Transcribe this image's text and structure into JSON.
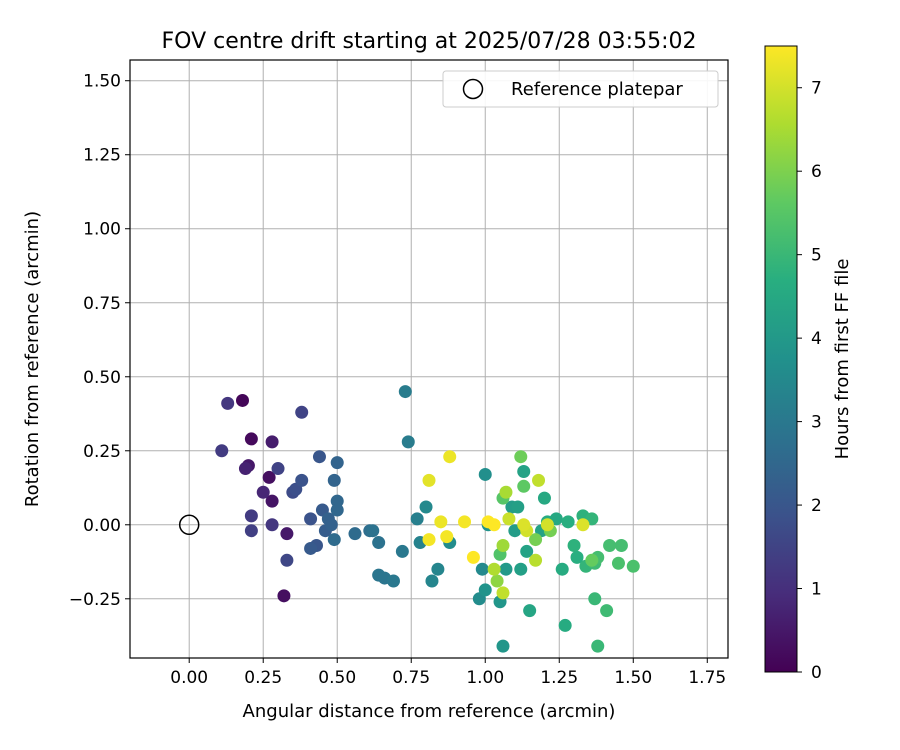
{
  "chart_data": {
    "type": "scatter",
    "title": "FOV centre drift starting at 2025/07/28 03:55:02",
    "xlabel": "Angular distance from reference (arcmin)",
    "ylabel": "Rotation from reference (arcmin)",
    "xlim": [
      -0.2,
      1.82
    ],
    "ylim": [
      -0.45,
      1.57
    ],
    "x_ticks": [
      "0.00",
      "0.25",
      "0.50",
      "0.75",
      "1.00",
      "1.25",
      "1.50",
      "1.75"
    ],
    "y_ticks": [
      "−0.25",
      "0.00",
      "0.25",
      "0.50",
      "0.75",
      "1.00",
      "1.25",
      "1.50"
    ],
    "grid": true,
    "legend": {
      "placement": "top-right",
      "entries": [
        "Reference platepar"
      ]
    },
    "reference_point": {
      "x": 0.0,
      "y": 0.0,
      "label": "Reference platepar"
    },
    "colorbar": {
      "label": "Hours from first FF file",
      "colormap": "viridis",
      "range": [
        0,
        7.5
      ],
      "ticks": [
        "0",
        "1",
        "2",
        "3",
        "4",
        "5",
        "6",
        "7"
      ]
    },
    "points": [
      {
        "x": 0.18,
        "y": 0.42,
        "h": 0.1
      },
      {
        "x": 0.21,
        "y": 0.29,
        "h": 0.2
      },
      {
        "x": 0.27,
        "y": 0.16,
        "h": 0.3
      },
      {
        "x": 0.28,
        "y": 0.08,
        "h": 0.4
      },
      {
        "x": 0.32,
        "y": -0.24,
        "h": 0.3
      },
      {
        "x": 0.2,
        "y": 0.2,
        "h": 0.5
      },
      {
        "x": 0.33,
        "y": -0.03,
        "h": 0.5
      },
      {
        "x": 0.28,
        "y": 0.28,
        "h": 0.6
      },
      {
        "x": 0.19,
        "y": 0.19,
        "h": 0.7
      },
      {
        "x": 0.25,
        "y": 0.11,
        "h": 0.8
      },
      {
        "x": 0.13,
        "y": 0.41,
        "h": 1.2
      },
      {
        "x": 0.11,
        "y": 0.25,
        "h": 1.3
      },
      {
        "x": 0.28,
        "y": 0.0,
        "h": 1.2
      },
      {
        "x": 0.21,
        "y": 0.03,
        "h": 1.3
      },
      {
        "x": 0.21,
        "y": -0.02,
        "h": 1.4
      },
      {
        "x": 0.3,
        "y": 0.19,
        "h": 1.5
      },
      {
        "x": 0.33,
        "y": -0.12,
        "h": 1.6
      },
      {
        "x": 0.38,
        "y": 0.38,
        "h": 1.5
      },
      {
        "x": 0.35,
        "y": 0.11,
        "h": 1.7
      },
      {
        "x": 0.36,
        "y": 0.12,
        "h": 1.8
      },
      {
        "x": 0.38,
        "y": 0.15,
        "h": 1.9
      },
      {
        "x": 0.41,
        "y": 0.02,
        "h": 1.9
      },
      {
        "x": 0.43,
        "y": -0.07,
        "h": 2.0
      },
      {
        "x": 0.41,
        "y": -0.08,
        "h": 2.1
      },
      {
        "x": 0.44,
        "y": 0.23,
        "h": 2.0
      },
      {
        "x": 0.45,
        "y": 0.05,
        "h": 2.1
      },
      {
        "x": 0.46,
        "y": -0.02,
        "h": 2.2
      },
      {
        "x": 0.47,
        "y": 0.02,
        "h": 2.3
      },
      {
        "x": 0.48,
        "y": 0.0,
        "h": 2.3
      },
      {
        "x": 0.49,
        "y": 0.15,
        "h": 2.4
      },
      {
        "x": 0.5,
        "y": 0.21,
        "h": 2.4
      },
      {
        "x": 0.5,
        "y": 0.08,
        "h": 2.5
      },
      {
        "x": 0.5,
        "y": 0.05,
        "h": 2.5
      },
      {
        "x": 0.49,
        "y": -0.05,
        "h": 2.6
      },
      {
        "x": 0.56,
        "y": -0.03,
        "h": 2.6
      },
      {
        "x": 0.61,
        "y": -0.02,
        "h": 2.7
      },
      {
        "x": 0.62,
        "y": -0.02,
        "h": 2.8
      },
      {
        "x": 0.64,
        "y": -0.06,
        "h": 2.8
      },
      {
        "x": 0.64,
        "y": -0.17,
        "h": 2.9
      },
      {
        "x": 0.66,
        "y": -0.18,
        "h": 2.9
      },
      {
        "x": 0.69,
        "y": -0.19,
        "h": 3.0
      },
      {
        "x": 0.72,
        "y": -0.09,
        "h": 3.0
      },
      {
        "x": 0.73,
        "y": 0.45,
        "h": 3.1
      },
      {
        "x": 0.74,
        "y": 0.28,
        "h": 3.1
      },
      {
        "x": 0.77,
        "y": 0.02,
        "h": 3.2
      },
      {
        "x": 0.78,
        "y": -0.06,
        "h": 3.3
      },
      {
        "x": 0.8,
        "y": 0.06,
        "h": 3.5
      },
      {
        "x": 0.82,
        "y": -0.19,
        "h": 3.4
      },
      {
        "x": 0.84,
        "y": -0.15,
        "h": 3.4
      },
      {
        "x": 0.88,
        "y": -0.06,
        "h": 3.6
      },
      {
        "x": 0.98,
        "y": -0.25,
        "h": 3.6
      },
      {
        "x": 0.99,
        "y": -0.15,
        "h": 3.5
      },
      {
        "x": 1.0,
        "y": 0.17,
        "h": 3.7
      },
      {
        "x": 1.0,
        "y": -0.22,
        "h": 3.8
      },
      {
        "x": 1.01,
        "y": 0.0,
        "h": 3.8
      },
      {
        "x": 1.05,
        "y": -0.26,
        "h": 3.9
      },
      {
        "x": 1.06,
        "y": -0.41,
        "h": 3.9
      },
      {
        "x": 1.07,
        "y": -0.15,
        "h": 4.0
      },
      {
        "x": 1.09,
        "y": 0.06,
        "h": 4.1
      },
      {
        "x": 1.1,
        "y": -0.02,
        "h": 4.1
      },
      {
        "x": 1.11,
        "y": 0.06,
        "h": 4.2
      },
      {
        "x": 1.12,
        "y": -0.15,
        "h": 4.2
      },
      {
        "x": 1.13,
        "y": 0.18,
        "h": 4.3
      },
      {
        "x": 1.14,
        "y": -0.09,
        "h": 4.3
      },
      {
        "x": 1.15,
        "y": -0.29,
        "h": 4.4
      },
      {
        "x": 1.19,
        "y": -0.02,
        "h": 4.3
      },
      {
        "x": 1.2,
        "y": 0.09,
        "h": 4.5
      },
      {
        "x": 1.21,
        "y": 0.01,
        "h": 4.6
      },
      {
        "x": 1.24,
        "y": 0.02,
        "h": 4.5
      },
      {
        "x": 1.26,
        "y": -0.15,
        "h": 4.6
      },
      {
        "x": 1.27,
        "y": -0.34,
        "h": 4.6
      },
      {
        "x": 1.28,
        "y": 0.01,
        "h": 4.7
      },
      {
        "x": 1.3,
        "y": -0.07,
        "h": 4.8
      },
      {
        "x": 1.31,
        "y": -0.11,
        "h": 4.7
      },
      {
        "x": 1.33,
        "y": 0.03,
        "h": 4.8
      },
      {
        "x": 1.34,
        "y": -0.14,
        "h": 4.9
      },
      {
        "x": 1.36,
        "y": 0.02,
        "h": 4.9
      },
      {
        "x": 1.37,
        "y": -0.25,
        "h": 5.0
      },
      {
        "x": 1.38,
        "y": -0.41,
        "h": 5.0
      },
      {
        "x": 1.37,
        "y": -0.13,
        "h": 5.1
      },
      {
        "x": 1.38,
        "y": -0.11,
        "h": 5.2
      },
      {
        "x": 1.41,
        "y": -0.29,
        "h": 5.1
      },
      {
        "x": 1.42,
        "y": -0.07,
        "h": 5.2
      },
      {
        "x": 1.45,
        "y": -0.13,
        "h": 5.3
      },
      {
        "x": 1.46,
        "y": -0.07,
        "h": 5.2
      },
      {
        "x": 1.5,
        "y": -0.14,
        "h": 5.3
      },
      {
        "x": 1.05,
        "y": -0.1,
        "h": 5.4
      },
      {
        "x": 1.06,
        "y": 0.09,
        "h": 5.5
      },
      {
        "x": 1.13,
        "y": 0.13,
        "h": 5.6
      },
      {
        "x": 1.12,
        "y": 0.23,
        "h": 5.8
      },
      {
        "x": 1.17,
        "y": -0.05,
        "h": 5.9
      },
      {
        "x": 1.22,
        "y": -0.02,
        "h": 5.9
      },
      {
        "x": 1.36,
        "y": -0.12,
        "h": 5.7
      },
      {
        "x": 1.04,
        "y": -0.19,
        "h": 6.2
      },
      {
        "x": 1.06,
        "y": -0.07,
        "h": 6.4
      },
      {
        "x": 1.07,
        "y": 0.11,
        "h": 6.5
      },
      {
        "x": 1.03,
        "y": -0.15,
        "h": 6.6
      },
      {
        "x": 1.06,
        "y": -0.23,
        "h": 6.8
      },
      {
        "x": 1.17,
        "y": -0.12,
        "h": 6.7
      },
      {
        "x": 1.18,
        "y": 0.15,
        "h": 6.8
      },
      {
        "x": 1.08,
        "y": 0.02,
        "h": 6.9
      },
      {
        "x": 1.14,
        "y": -0.02,
        "h": 7.0
      },
      {
        "x": 1.13,
        "y": 0.0,
        "h": 7.1
      },
      {
        "x": 1.21,
        "y": 0.0,
        "h": 7.0
      },
      {
        "x": 1.33,
        "y": 0.0,
        "h": 7.1
      },
      {
        "x": 0.81,
        "y": 0.15,
        "h": 7.2
      },
      {
        "x": 0.85,
        "y": 0.01,
        "h": 7.3
      },
      {
        "x": 0.88,
        "y": 0.23,
        "h": 7.3
      },
      {
        "x": 0.87,
        "y": -0.04,
        "h": 7.4
      },
      {
        "x": 0.81,
        "y": -0.05,
        "h": 7.4
      },
      {
        "x": 0.93,
        "y": 0.01,
        "h": 7.4
      },
      {
        "x": 0.96,
        "y": -0.11,
        "h": 7.5
      },
      {
        "x": 1.01,
        "y": 0.01,
        "h": 7.5
      },
      {
        "x": 1.03,
        "y": 0.0,
        "h": 7.5
      }
    ]
  }
}
